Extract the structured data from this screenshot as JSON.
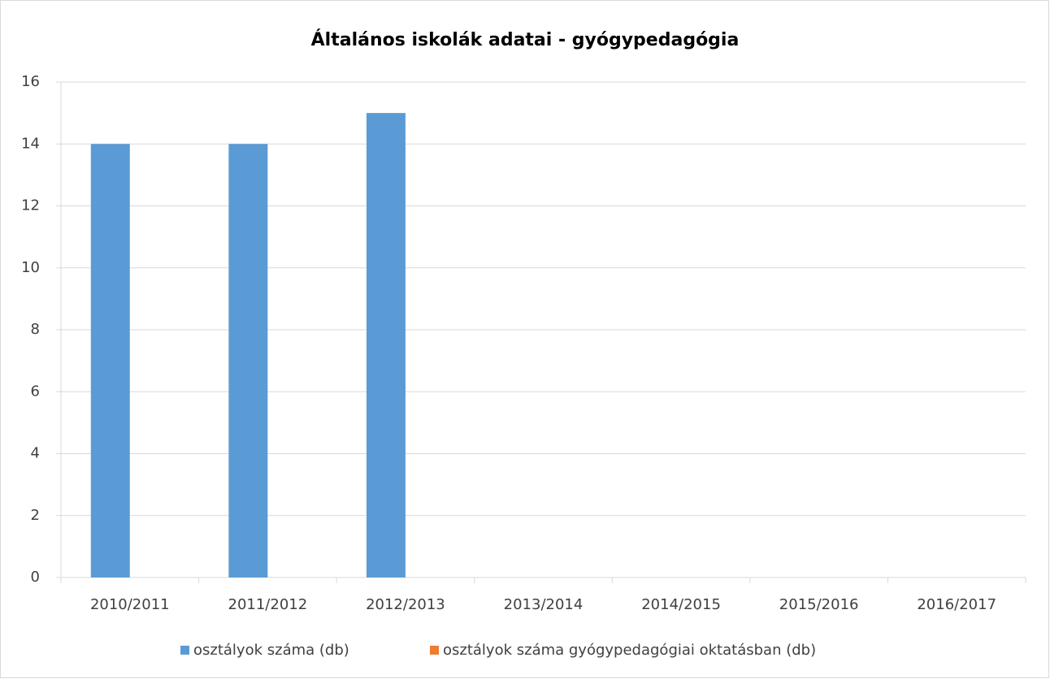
{
  "chart_data": {
    "type": "bar",
    "title": "Általános iskolák adatai - gyógypedagógia",
    "categories": [
      "2010/2011",
      "2011/2012",
      "2012/2013",
      "2013/2014",
      "2014/2015",
      "2015/2016",
      "2016/2017"
    ],
    "series": [
      {
        "name": "osztályok száma (db)",
        "color": "#5b9bd5",
        "values": [
          14,
          14,
          15,
          null,
          null,
          null,
          null
        ]
      },
      {
        "name": "osztályok száma gyógypedagógiai oktatásban (db)",
        "color": "#ed7d31",
        "values": [
          null,
          null,
          null,
          null,
          null,
          null,
          null
        ]
      }
    ],
    "ylim": [
      0,
      16
    ],
    "yticks": [
      0,
      2,
      4,
      6,
      8,
      10,
      12,
      14,
      16
    ],
    "grid": true,
    "legend": "bottom"
  }
}
